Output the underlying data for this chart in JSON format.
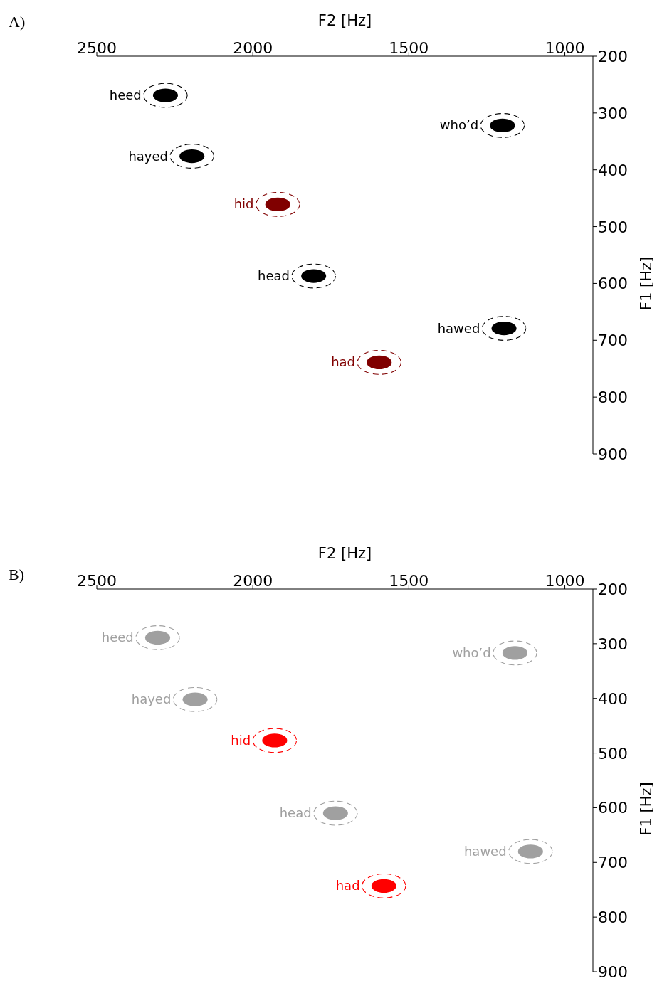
{
  "chart_data": [
    {
      "type": "scatter",
      "title": "A)",
      "xlabel": "F2 [Hz]",
      "ylabel": "F1 [Hz]",
      "xlim": [
        2500,
        910
      ],
      "xticks": [
        2500,
        2000,
        1500,
        1000
      ],
      "ylim": [
        900,
        200
      ],
      "yticks": [
        200,
        300,
        400,
        500,
        600,
        700,
        800,
        900
      ],
      "annotations": [
        {
          "text": "heed",
          "x": 2280,
          "y": 269
        },
        {
          "text": "hayed",
          "x": 2195,
          "y": 376
        },
        {
          "text": "hid",
          "x": 1920,
          "y": 461
        },
        {
          "text": "head",
          "x": 1805,
          "y": 587
        },
        {
          "text": "had",
          "x": 1595,
          "y": 739
        },
        {
          "text": "who’d",
          "x": 1200,
          "y": 322
        },
        {
          "text": "hawed",
          "x": 1195,
          "y": 679
        }
      ],
      "series": [
        {
          "x": [
            2280,
            2195,
            1920,
            1805,
            1595,
            1200,
            1195
          ],
          "values": [
            269,
            376,
            461,
            587,
            739,
            322,
            679
          ],
          "colors": [
            "#000000",
            "#000000",
            "#800000",
            "#000000",
            "#800000",
            "#000000",
            "#000000"
          ]
        }
      ]
    },
    {
      "type": "scatter",
      "title": "B)",
      "xlabel": "F2 [Hz]",
      "ylabel": "F1 [Hz]",
      "xlim": [
        2500,
        910
      ],
      "xticks": [
        2500,
        2000,
        1500,
        1000
      ],
      "ylim": [
        900,
        200
      ],
      "yticks": [
        200,
        300,
        400,
        500,
        600,
        700,
        800,
        900
      ],
      "annotations": [
        {
          "text": "heed",
          "x": 2305,
          "y": 289
        },
        {
          "text": "hayed",
          "x": 2185,
          "y": 402
        },
        {
          "text": "hid",
          "x": 1930,
          "y": 477
        },
        {
          "text": "head",
          "x": 1735,
          "y": 610
        },
        {
          "text": "had",
          "x": 1580,
          "y": 743
        },
        {
          "text": "who’d",
          "x": 1160,
          "y": 317
        },
        {
          "text": "hawed",
          "x": 1110,
          "y": 680
        }
      ],
      "series": [
        {
          "x": [
            2305,
            2185,
            1930,
            1735,
            1580,
            1160,
            1110
          ],
          "values": [
            289,
            402,
            477,
            610,
            743,
            317,
            680
          ],
          "colors": [
            "#a0a0a0",
            "#a0a0a0",
            "#ff0000",
            "#a0a0a0",
            "#ff0000",
            "#a0a0a0",
            "#a0a0a0"
          ]
        }
      ]
    }
  ]
}
